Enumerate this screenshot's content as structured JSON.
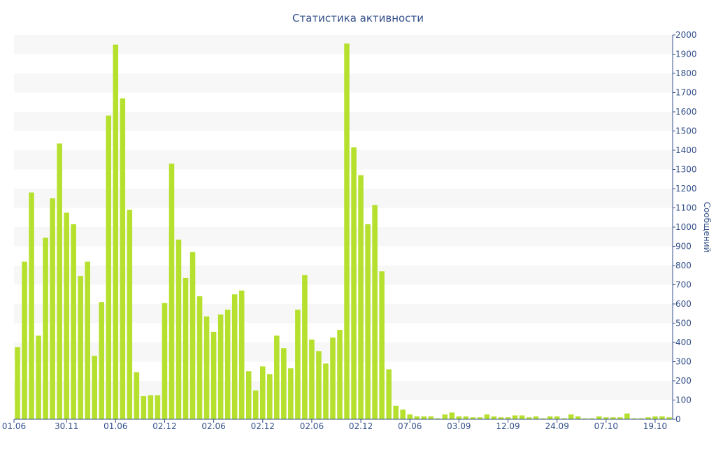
{
  "chart_data": {
    "type": "bar",
    "title": "Статистика активности",
    "ylabel": "Сообщений",
    "xlabel": "",
    "ylim": [
      0,
      2000
    ],
    "y_ticks": [
      0,
      100,
      200,
      300,
      400,
      500,
      600,
      700,
      800,
      900,
      1000,
      1100,
      1200,
      1300,
      1400,
      1500,
      1600,
      1700,
      1800,
      1900,
      2000
    ],
    "y_axis_position": "right",
    "grid": "alternating horizontal bands",
    "bar_color": "#b5e02d",
    "text_color": "#34508a",
    "band_color": "#f7f7f7",
    "x_tick_labels": [
      {
        "index": 0,
        "label": "01.06"
      },
      {
        "index": 7,
        "label": "30.11"
      },
      {
        "index": 14,
        "label": "01.06"
      },
      {
        "index": 21,
        "label": "02.12"
      },
      {
        "index": 28,
        "label": "02.06"
      },
      {
        "index": 35,
        "label": "02.12"
      },
      {
        "index": 42,
        "label": "02.06"
      },
      {
        "index": 49,
        "label": "02.12"
      },
      {
        "index": 56,
        "label": "07.06"
      },
      {
        "index": 63,
        "label": "03.09"
      },
      {
        "index": 70,
        "label": "12.09"
      },
      {
        "index": 77,
        "label": "24.09"
      },
      {
        "index": 84,
        "label": "07.10"
      },
      {
        "index": 91,
        "label": "19.10"
      }
    ],
    "values": [
      375,
      820,
      1180,
      435,
      945,
      1150,
      1435,
      1075,
      1015,
      745,
      820,
      330,
      610,
      1580,
      1950,
      1670,
      1090,
      245,
      120,
      125,
      125,
      605,
      1330,
      935,
      735,
      870,
      640,
      535,
      455,
      545,
      570,
      650,
      670,
      250,
      150,
      275,
      235,
      435,
      370,
      265,
      570,
      750,
      415,
      355,
      290,
      425,
      465,
      1955,
      1415,
      1270,
      1015,
      1115,
      770,
      260,
      70,
      50,
      25,
      15,
      15,
      15,
      5,
      25,
      35,
      15,
      15,
      10,
      10,
      25,
      15,
      10,
      10,
      20,
      20,
      10,
      15,
      5,
      15,
      15,
      5,
      25,
      15,
      5,
      5,
      15,
      10,
      10,
      10,
      30,
      5,
      5,
      10,
      15,
      15,
      10
    ]
  }
}
